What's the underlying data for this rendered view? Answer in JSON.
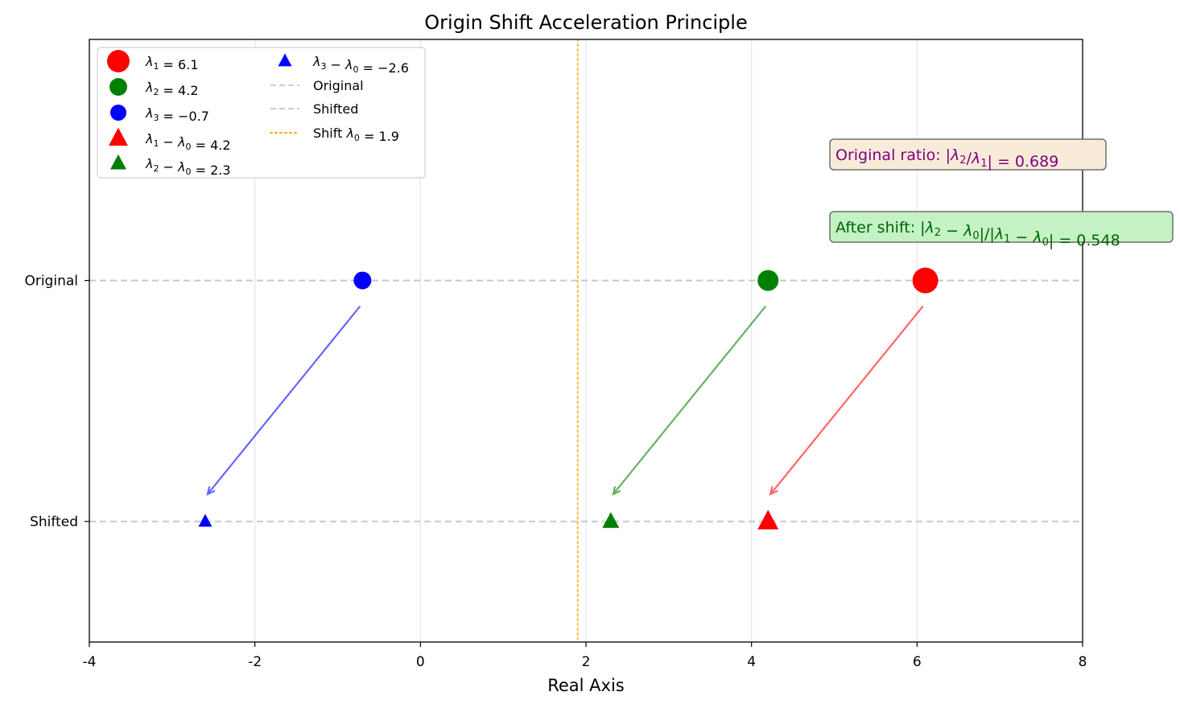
{
  "chart_data": {
    "type": "scatter",
    "title": "Origin Shift Acceleration Principle",
    "xlabel": "Real Axis",
    "ylabel": "",
    "xlim": [
      -4,
      8
    ],
    "ylim": [
      -0.5,
      2.0
    ],
    "xticks": [
      -4,
      -2,
      0,
      2,
      4,
      6,
      8
    ],
    "xtick_labels": [
      "-4",
      "-2",
      "0",
      "2",
      "4",
      "6",
      "8"
    ],
    "rows": [
      {
        "y": 1,
        "label": "Original"
      },
      {
        "y": 0,
        "label": "Shifted"
      }
    ],
    "grid": "vertical",
    "shift": 1.9,
    "shift_color": "#FFA500",
    "eigenvalues": [
      {
        "name": "λ1",
        "color": "#FF0000",
        "original": 6.1,
        "shifted": 4.2
      },
      {
        "name": "λ2",
        "color": "#008000",
        "original": 4.2,
        "shifted": 2.3
      },
      {
        "name": "λ3",
        "color": "#0000FF",
        "original": -0.7,
        "shifted": -2.6
      }
    ],
    "legend": {
      "placement": "upper-left",
      "entries": [
        {
          "sub": "1",
          "expr": "= 6.1",
          "marker": "circle",
          "color": "#FF0000",
          "size": "large"
        },
        {
          "sub": "2",
          "expr": "= 4.2",
          "marker": "circle",
          "color": "#008000",
          "size": "medium"
        },
        {
          "sub": "3",
          "expr": "= −0.7",
          "marker": "circle",
          "color": "#0000FF",
          "size": "small"
        },
        {
          "sub": "1",
          "expr": "= 4.2",
          "minus0": true,
          "marker": "triangle",
          "color": "#FF0000",
          "size": "large"
        },
        {
          "sub": "2",
          "expr": "= 2.3",
          "minus0": true,
          "marker": "triangle",
          "color": "#008000",
          "size": "medium"
        },
        {
          "sub": "3",
          "expr": "= −2.6",
          "minus0": true,
          "marker": "triangle",
          "color": "#0000FF",
          "size": "small"
        },
        {
          "label": "Original",
          "marker": "dashed-line",
          "color": "#CCCCCC"
        },
        {
          "label": "Shifted",
          "marker": "dashed-line",
          "color": "#CCCCCC"
        },
        {
          "label": "Shift λ0 = 1.9",
          "labelPrefix": "Shift ",
          "sub": "0",
          "expr": "= 1.9",
          "marker": "dotted-line",
          "color": "#FFA500"
        }
      ]
    },
    "annotations": [
      {
        "prefix": "Original ratio: ",
        "math": "|λ2/λ1| = 0.689",
        "text_color": "#800080",
        "box_color": "#F8ECD9"
      },
      {
        "prefix": "After shift: ",
        "math": "|λ2 − λ0|/|λ1 − λ0| = 0.548",
        "text_color": "#006400",
        "box_color": "#C4F2C4"
      }
    ]
  }
}
